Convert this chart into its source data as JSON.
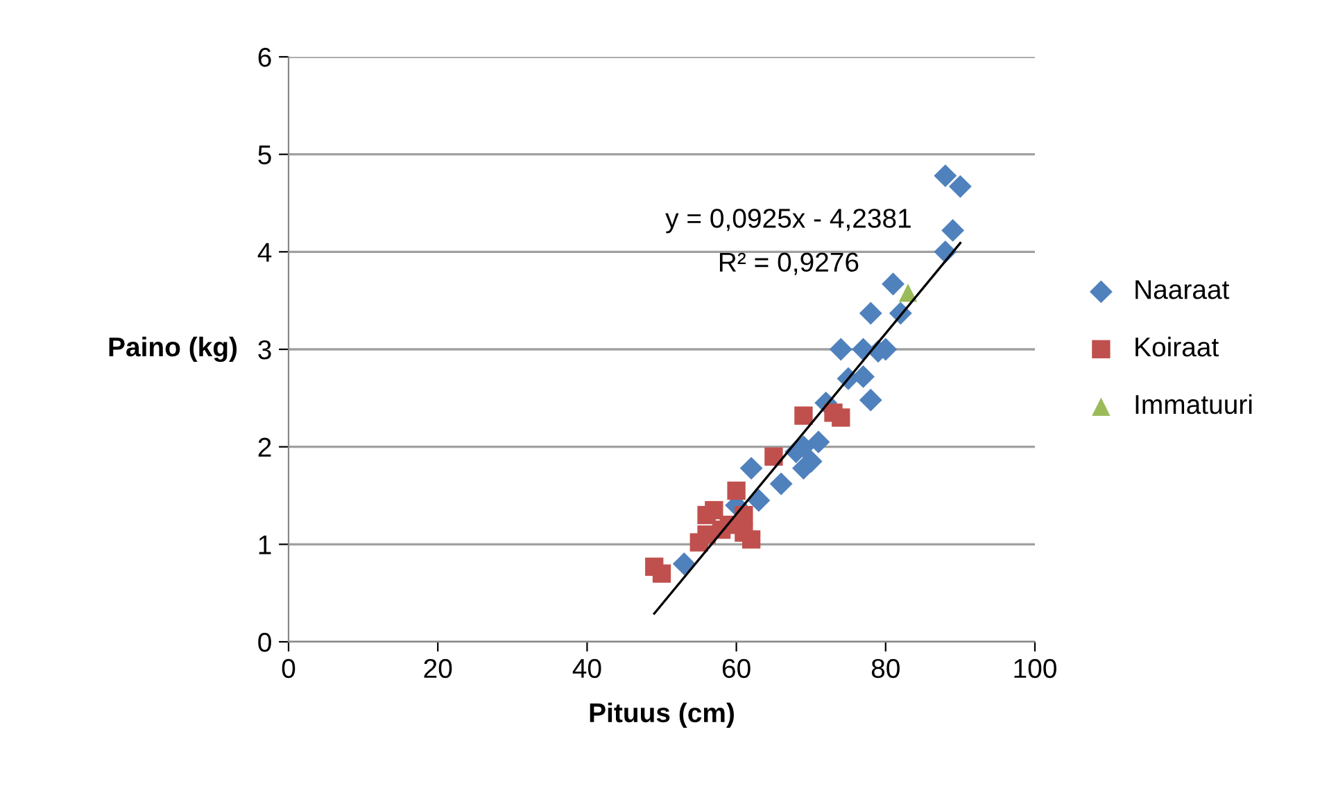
{
  "chart_data": {
    "type": "scatter",
    "xlabel": "Pituus (cm)",
    "ylabel": "Paino (kg)",
    "xlim": [
      0,
      100
    ],
    "xticks": [
      0,
      20,
      40,
      60,
      80,
      100
    ],
    "ylim": [
      0,
      6
    ],
    "yticks": [
      0,
      1,
      2,
      3,
      4,
      5,
      6
    ],
    "grid": "y",
    "legend": "right",
    "annotations": [
      "y = 0,0925x - 4,2381",
      "R² = 0,9276"
    ],
    "series": [
      {
        "name": "Naaraat",
        "color": "#4f81bd",
        "marker": "diamond",
        "x": [
          88,
          90,
          89,
          88,
          81,
          82,
          78,
          74,
          77,
          80,
          79,
          75,
          77,
          78,
          72,
          71,
          69,
          68,
          70,
          69,
          66,
          62,
          63,
          60,
          53
        ],
        "values": [
          4.78,
          4.67,
          4.22,
          4.0,
          3.67,
          3.37,
          3.37,
          3.0,
          3.0,
          3.0,
          2.98,
          2.7,
          2.72,
          2.48,
          2.45,
          2.05,
          2.0,
          1.95,
          1.85,
          1.78,
          1.62,
          1.78,
          1.45,
          1.4,
          0.8
        ]
      },
      {
        "name": "Koiraat",
        "color": "#c0504d",
        "marker": "square",
        "x": [
          49,
          50,
          55,
          56,
          56,
          57,
          58,
          60,
          61,
          62,
          61,
          65,
          69,
          73,
          74,
          59
        ],
        "values": [
          0.77,
          0.7,
          1.02,
          1.1,
          1.3,
          1.35,
          1.15,
          1.55,
          1.3,
          1.05,
          1.12,
          1.9,
          2.32,
          2.35,
          2.3,
          1.2
        ]
      },
      {
        "name": "Immatuuri",
        "color": "#9bbb59",
        "marker": "triangle",
        "x": [
          83
        ],
        "values": [
          3.58
        ]
      },
      {
        "type": "line",
        "color": "#000000",
        "marker": "none",
        "x": [
          49,
          90
        ],
        "values": [
          0.29,
          4.09
        ]
      }
    ]
  }
}
